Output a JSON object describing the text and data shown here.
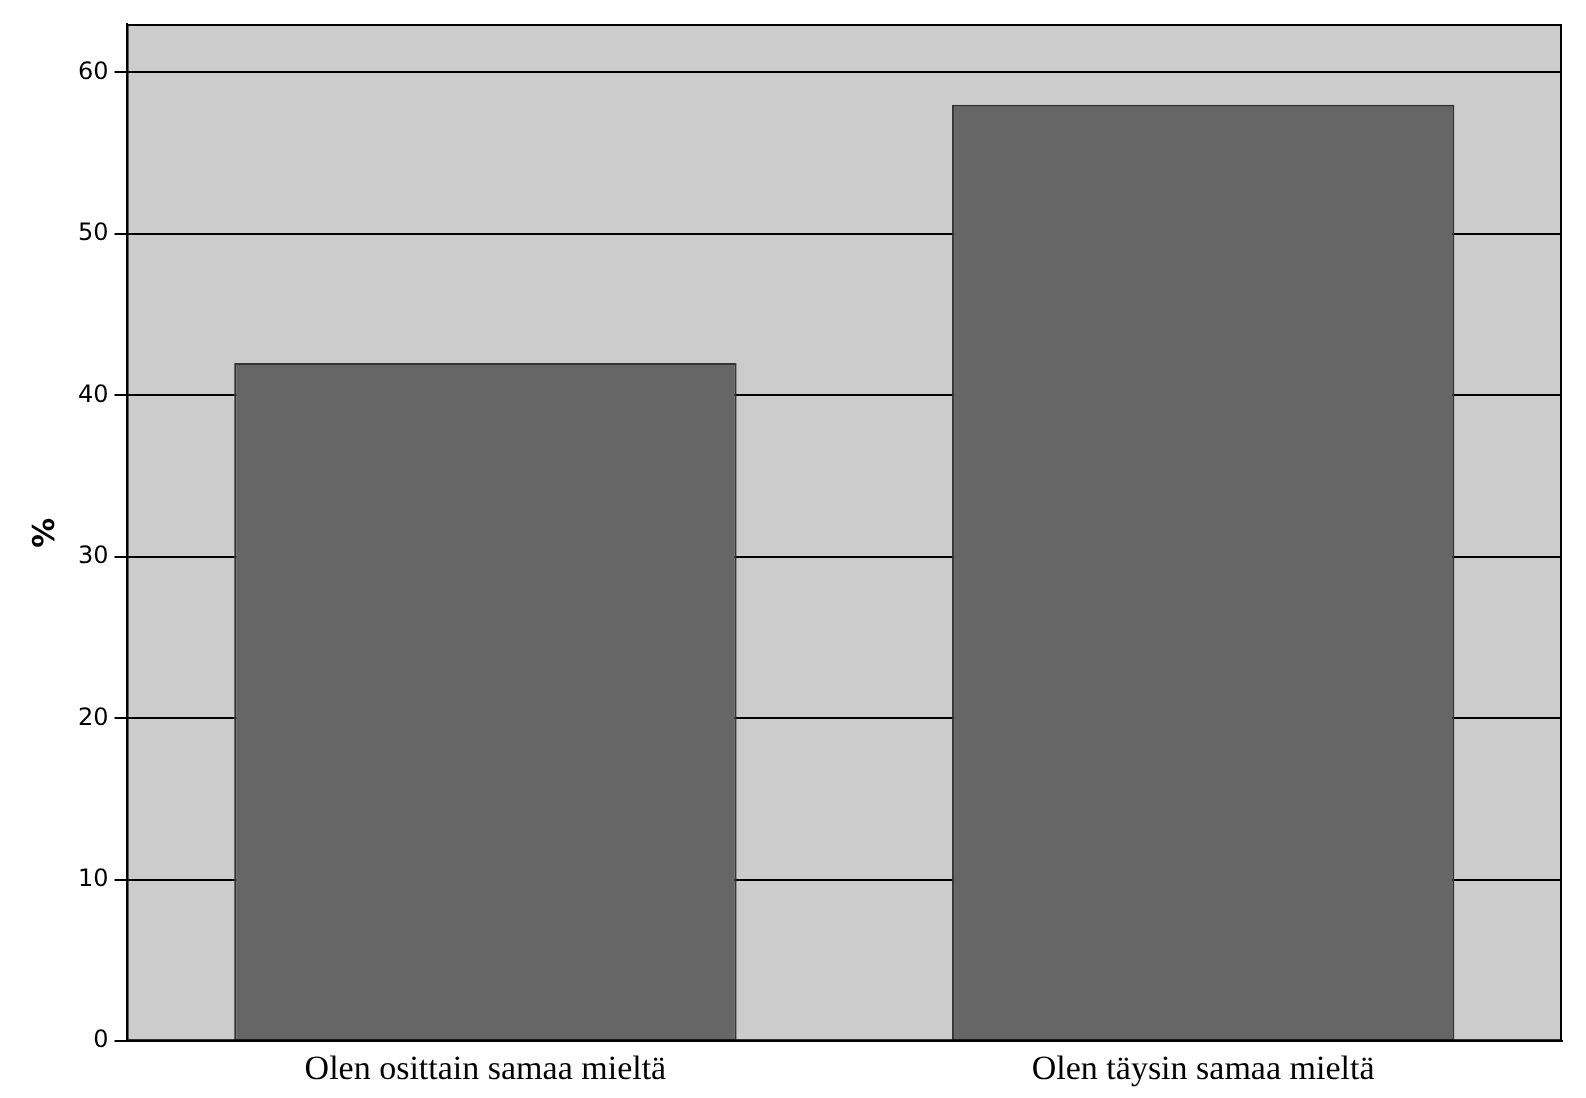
{
  "chart_data": {
    "type": "bar",
    "ylabel": "%",
    "categories": [
      "Olen osittain samaa mieltä",
      "Olen täysin samaa mieltä"
    ],
    "values": [
      42,
      58
    ],
    "color": "#666666",
    "ylim": [
      0,
      63
    ],
    "yticks": [
      0,
      10,
      20,
      30,
      40,
      50,
      60
    ],
    "grid": "y",
    "legend": false
  }
}
